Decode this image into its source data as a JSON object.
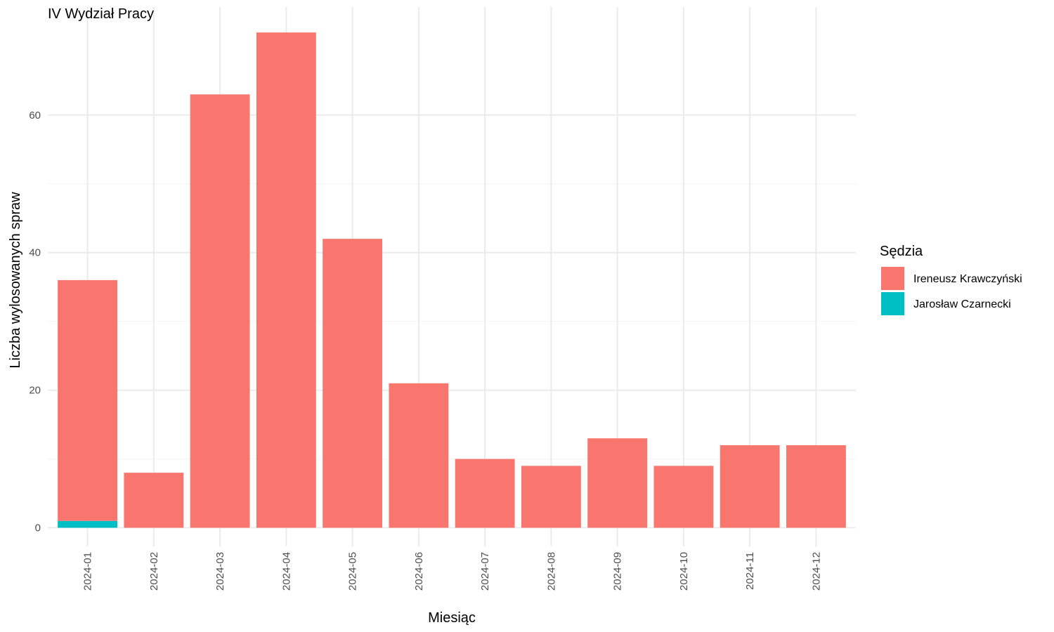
{
  "chart_data": {
    "type": "bar",
    "stacked": true,
    "title": "IV Wydział Pracy",
    "xlabel": "Miesiąc",
    "ylabel": "Liczba wylosowanych spraw",
    "categories": [
      "2024-01",
      "2024-02",
      "2024-03",
      "2024-04",
      "2024-05",
      "2024-06",
      "2024-07",
      "2024-08",
      "2024-09",
      "2024-10",
      "2024-11",
      "2024-12"
    ],
    "series": [
      {
        "name": "Jarosław Czarnecki",
        "color": "#00BFC4",
        "values": [
          1,
          0,
          0,
          0,
          0,
          0,
          0,
          0,
          0,
          0,
          0,
          0
        ]
      },
      {
        "name": "Ireneusz Krawczyński",
        "color": "#F8766D",
        "values": [
          35,
          8,
          63,
          72,
          42,
          21,
          10,
          9,
          13,
          9,
          12,
          12
        ]
      }
    ],
    "yticks": [
      0,
      20,
      40,
      60
    ],
    "ylim": [
      -2.7,
      75.7
    ],
    "grid": true,
    "legend": {
      "title": "Sędzia",
      "placement": "right",
      "entries": [
        {
          "label": "Ireneusz Krawczyński",
          "color": "#F8766D"
        },
        {
          "label": "Jarosław Czarnecki",
          "color": "#00BFC4"
        }
      ]
    }
  }
}
